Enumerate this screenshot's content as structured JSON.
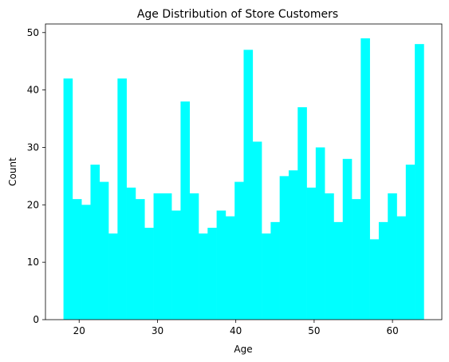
{
  "chart_data": {
    "type": "bar",
    "title": "Age Distribution of Store Customers",
    "xlabel": "Age",
    "ylabel": "Count",
    "bin_start": 18,
    "bin_end": 64,
    "values": [
      42,
      21,
      20,
      27,
      24,
      15,
      42,
      23,
      21,
      16,
      22,
      22,
      19,
      38,
      22,
      15,
      16,
      19,
      18,
      24,
      47,
      31,
      15,
      17,
      25,
      26,
      37,
      23,
      30,
      22,
      17,
      28,
      21,
      49,
      14,
      17,
      22,
      18,
      27,
      48
    ],
    "xlim": [
      15.7,
      66.3
    ],
    "ylim": [
      0,
      51.5
    ],
    "xticks": [
      20,
      30,
      40,
      50,
      60
    ],
    "yticks": [
      0,
      10,
      20,
      30,
      40,
      50
    ],
    "color": "#00ffff",
    "grid": false
  }
}
